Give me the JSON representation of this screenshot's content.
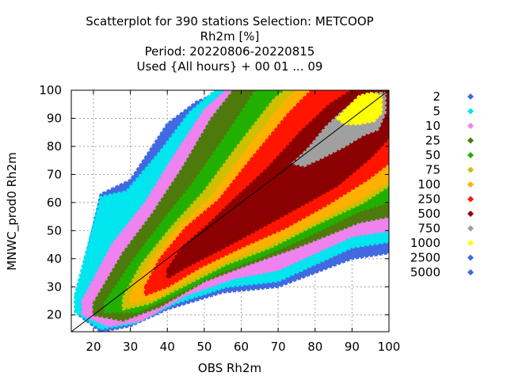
{
  "chart_data": {
    "type": "heatmap",
    "title_lines": [
      "Scatterplot for  390 stations Selection: METCOOP",
      "Rh2m [%]",
      "Period: 20220806-20220815",
      "Used {All hours} + 00 01 ... 09"
    ],
    "xlabel": "OBS Rh2m",
    "ylabel": "MNWC_prod0 Rh2m",
    "xlim": [
      14,
      100
    ],
    "ylim": [
      14,
      100
    ],
    "xticks": [
      20,
      30,
      40,
      50,
      60,
      70,
      80,
      90,
      100
    ],
    "yticks": [
      20,
      30,
      40,
      50,
      60,
      70,
      80,
      90,
      100
    ],
    "grid": true,
    "legend_position": "right",
    "diagonal_line": [
      [
        14,
        14
      ],
      [
        100,
        100
      ]
    ],
    "legend": [
      {
        "label": "2",
        "color": "#4169e1"
      },
      {
        "label": "5",
        "color": "#00e5ee"
      },
      {
        "label": "10",
        "color": "#ee82ee"
      },
      {
        "label": "25",
        "color": "#4d7a0a"
      },
      {
        "label": "50",
        "color": "#22b000"
      },
      {
        "label": "75",
        "color": "#cdc000"
      },
      {
        "label": "100",
        "color": "#ffb000"
      },
      {
        "label": "250",
        "color": "#ff1500"
      },
      {
        "label": "500",
        "color": "#8b0000"
      },
      {
        "label": "750",
        "color": "#a0a0a0"
      },
      {
        "label": "1000",
        "color": "#ffff00"
      },
      {
        "label": "2500",
        "color": "#4169e1"
      },
      {
        "label": "5000",
        "color": "#4169e1"
      }
    ],
    "density_bands": [
      {
        "label": "2",
        "color": "#4169e1",
        "points": [
          [
            16,
            29
          ],
          [
            22,
            63
          ],
          [
            30,
            68
          ],
          [
            40,
            88
          ],
          [
            48,
            96
          ],
          [
            56,
            100
          ],
          [
            100,
            100
          ],
          [
            100,
            42
          ],
          [
            90,
            40
          ],
          [
            70,
            30
          ],
          [
            55,
            28
          ],
          [
            40,
            22
          ],
          [
            30,
            16
          ],
          [
            22,
            14
          ],
          [
            16,
            20
          ]
        ]
      },
      {
        "label": "5",
        "color": "#00e5ee",
        "points": [
          [
            15,
            27
          ],
          [
            22,
            62
          ],
          [
            29,
            64
          ],
          [
            38,
            78
          ],
          [
            46,
            92
          ],
          [
            53,
            100
          ],
          [
            100,
            100
          ],
          [
            100,
            46
          ],
          [
            90,
            44
          ],
          [
            70,
            32
          ],
          [
            56,
            30
          ],
          [
            42,
            24
          ],
          [
            31,
            17
          ],
          [
            22,
            15
          ],
          [
            15,
            21
          ]
        ]
      },
      {
        "label": "10",
        "color": "#ee82ee",
        "points": [
          [
            17,
            25
          ],
          [
            25,
            45
          ],
          [
            34,
            60
          ],
          [
            42,
            77
          ],
          [
            50,
            93
          ],
          [
            56,
            100
          ],
          [
            100,
            100
          ],
          [
            100,
            50
          ],
          [
            90,
            48
          ],
          [
            70,
            36
          ],
          [
            58,
            33
          ],
          [
            45,
            27
          ],
          [
            33,
            18
          ],
          [
            24,
            16
          ],
          [
            17,
            20
          ]
        ]
      },
      {
        "label": "25",
        "color": "#4d7a0a",
        "points": [
          [
            20,
            24
          ],
          [
            28,
            42
          ],
          [
            36,
            56
          ],
          [
            44,
            72
          ],
          [
            52,
            90
          ],
          [
            58,
            100
          ],
          [
            100,
            100
          ],
          [
            100,
            55
          ],
          [
            92,
            53
          ],
          [
            75,
            44
          ],
          [
            62,
            38
          ],
          [
            50,
            32
          ],
          [
            38,
            23
          ],
          [
            28,
            18
          ],
          [
            20,
            20
          ]
        ]
      },
      {
        "label": "50",
        "color": "#22b000",
        "points": [
          [
            23,
            24
          ],
          [
            30,
            38
          ],
          [
            38,
            52
          ],
          [
            47,
            67
          ],
          [
            56,
            84
          ],
          [
            64,
            100
          ],
          [
            100,
            100
          ],
          [
            100,
            60
          ],
          [
            92,
            57
          ],
          [
            78,
            48
          ],
          [
            66,
            41
          ],
          [
            54,
            35
          ],
          [
            42,
            27
          ],
          [
            32,
            21
          ],
          [
            23,
            21
          ]
        ]
      },
      {
        "label": "75",
        "color": "#cdc000",
        "points": [
          [
            28,
            26
          ],
          [
            33,
            38
          ],
          [
            41,
            51
          ],
          [
            50,
            64
          ],
          [
            59,
            80
          ],
          [
            69,
            97
          ],
          [
            72,
            100
          ],
          [
            100,
            100
          ],
          [
            100,
            66
          ],
          [
            93,
            60
          ],
          [
            80,
            52
          ],
          [
            68,
            44
          ],
          [
            56,
            38
          ],
          [
            44,
            30
          ],
          [
            35,
            24
          ],
          [
            28,
            22
          ]
        ]
      },
      {
        "label": "100",
        "color": "#ffb000",
        "points": [
          [
            30,
            27
          ],
          [
            35,
            38
          ],
          [
            43,
            51
          ],
          [
            52,
            62
          ],
          [
            61,
            78
          ],
          [
            71,
            95
          ],
          [
            75,
            100
          ],
          [
            100,
            100
          ],
          [
            100,
            68
          ],
          [
            93,
            62
          ],
          [
            81,
            54
          ],
          [
            69,
            46
          ],
          [
            57,
            40
          ],
          [
            46,
            33
          ],
          [
            37,
            26
          ],
          [
            30,
            24
          ]
        ]
      },
      {
        "label": "250",
        "color": "#ff1500",
        "points": [
          [
            34,
            30
          ],
          [
            38,
            40
          ],
          [
            45,
            51
          ],
          [
            54,
            61
          ],
          [
            63,
            76
          ],
          [
            73,
            92
          ],
          [
            79,
            100
          ],
          [
            100,
            100
          ],
          [
            100,
            74
          ],
          [
            94,
            68
          ],
          [
            83,
            59
          ],
          [
            72,
            51
          ],
          [
            60,
            44
          ],
          [
            49,
            37
          ],
          [
            40,
            30
          ],
          [
            34,
            27
          ]
        ]
      },
      {
        "label": "500",
        "color": "#8b0000",
        "points": [
          [
            40,
            36
          ],
          [
            44,
            44
          ],
          [
            51,
            52
          ],
          [
            58,
            61
          ],
          [
            67,
            72
          ],
          [
            76,
            85
          ],
          [
            84,
            95
          ],
          [
            90,
            100
          ],
          [
            100,
            100
          ],
          [
            100,
            83
          ],
          [
            95,
            76
          ],
          [
            86,
            66
          ],
          [
            75,
            58
          ],
          [
            64,
            50
          ],
          [
            54,
            43
          ],
          [
            45,
            37
          ],
          [
            40,
            33
          ]
        ]
      },
      {
        "label": "750",
        "color": "#a0a0a0",
        "points": [
          [
            74,
            74
          ],
          [
            78,
            79
          ],
          [
            83,
            87
          ],
          [
            87,
            92
          ],
          [
            92,
            97
          ],
          [
            96,
            99
          ],
          [
            99,
            99
          ],
          [
            99,
            92
          ],
          [
            97,
            86
          ],
          [
            93,
            84
          ],
          [
            88,
            80
          ],
          [
            82,
            76
          ],
          [
            77,
            73
          ]
        ]
      },
      {
        "label": "1000",
        "color": "#ffff00",
        "points": [
          [
            86,
            90
          ],
          [
            89,
            94
          ],
          [
            92,
            98
          ],
          [
            95,
            99
          ],
          [
            98,
            98
          ],
          [
            98,
            92
          ],
          [
            96,
            89
          ],
          [
            92,
            88
          ],
          [
            88,
            88
          ]
        ]
      }
    ]
  }
}
